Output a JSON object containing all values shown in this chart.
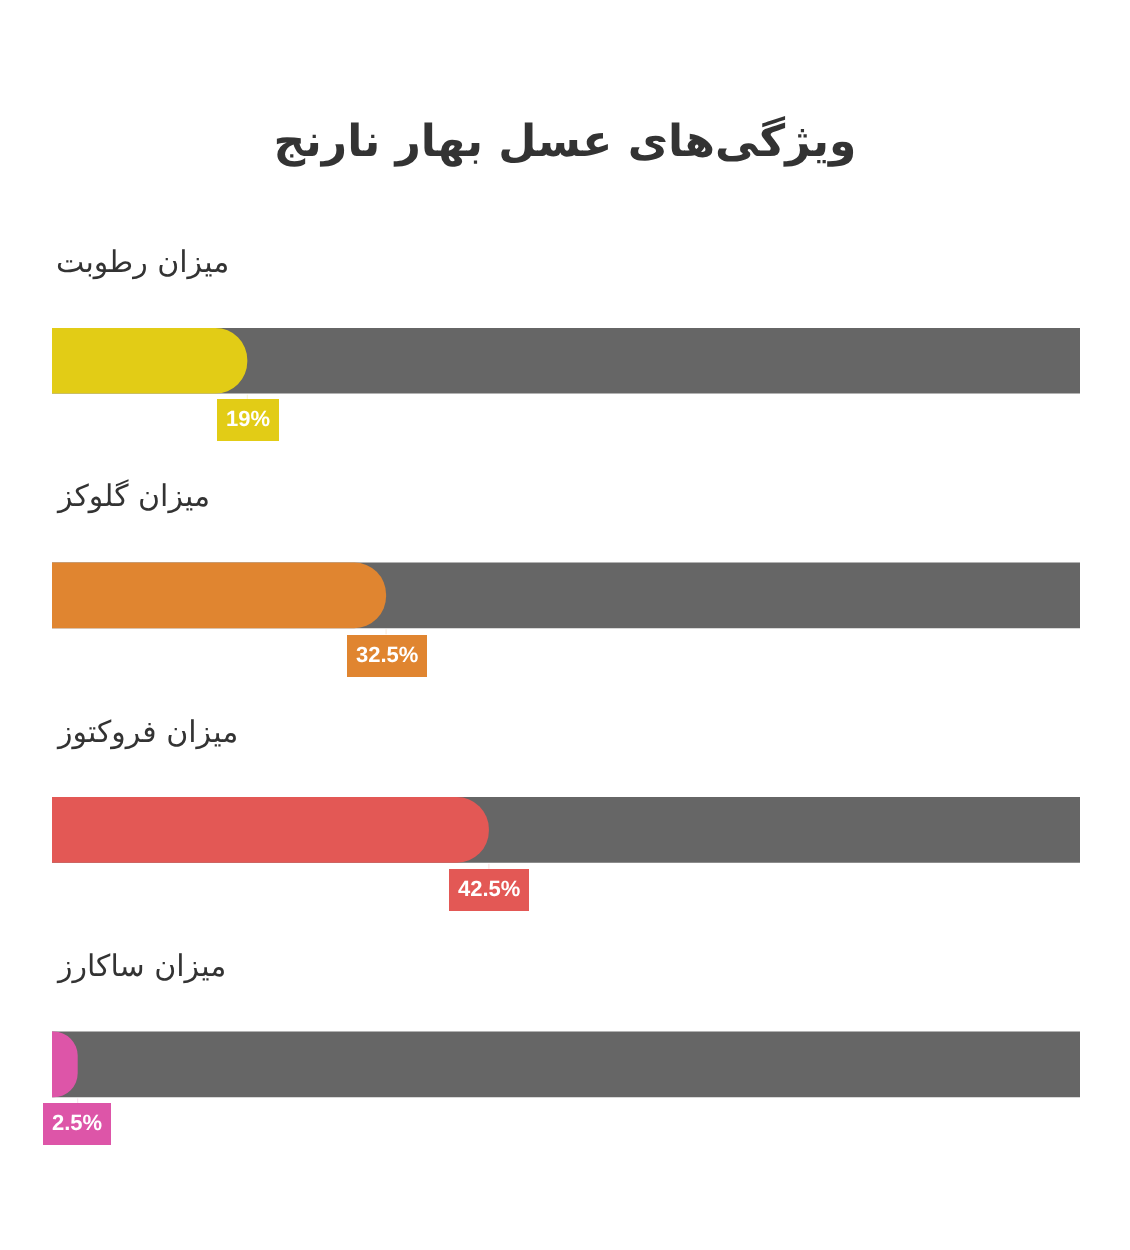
{
  "chart_data": {
    "type": "bar",
    "orientation": "horizontal",
    "title": "ویژگی‌های عسل بهار نارنج",
    "categories": [
      "میزان رطوبت",
      "میزان گلوکز",
      "میزان فروکتوز",
      "میزان ساکارز"
    ],
    "values": [
      19,
      32.5,
      42.5,
      2.5
    ],
    "colors": [
      "#e2cc16",
      "#e08530",
      "#e35855",
      "#dd55a8"
    ],
    "value_labels": [
      "19%",
      "32.5%",
      "42.5%",
      "2.5%"
    ],
    "xlim": [
      0,
      100
    ],
    "tick_labels": false,
    "grid": false,
    "legend": false
  }
}
